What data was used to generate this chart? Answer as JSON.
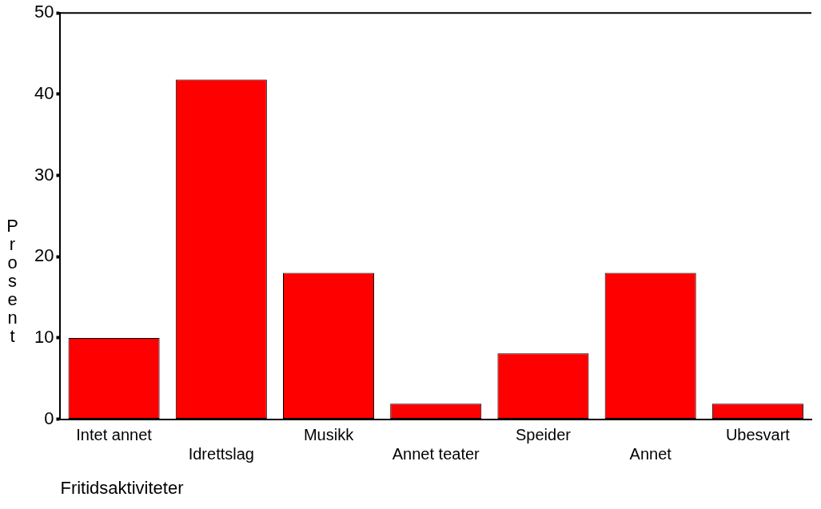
{
  "chart_data": {
    "type": "bar",
    "xlabel": "Fritidsaktiviteter",
    "ylabel": "Prosent",
    "categories": [
      "Intet annet",
      "Idrettslag",
      "Musikk",
      "Annet teater",
      "Speider",
      "Annet",
      "Ubesvart"
    ],
    "values": [
      10,
      41.8,
      18,
      1.9,
      8.1,
      18,
      1.9
    ],
    "color": "#ff0000",
    "ylim": [
      0,
      50
    ],
    "yticks": [
      0,
      10,
      20,
      30,
      40,
      50
    ],
    "grid": false,
    "legend": false
  }
}
